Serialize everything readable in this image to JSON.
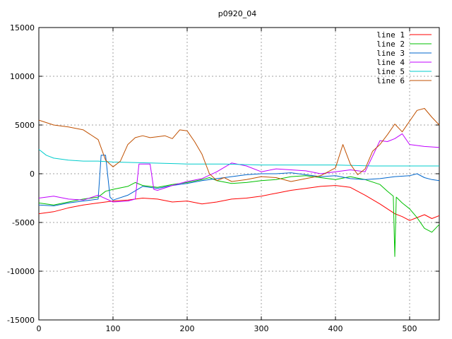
{
  "chart_data": {
    "type": "line",
    "title": "p0920_04",
    "xlabel": "",
    "ylabel": "",
    "xlim": [
      0,
      540
    ],
    "ylim": [
      -15000,
      15000
    ],
    "x_ticks": [
      0,
      100,
      200,
      300,
      400,
      500
    ],
    "y_ticks": [
      -15000,
      -10000,
      -5000,
      0,
      5000,
      10000,
      15000
    ],
    "grid": true,
    "legend_position": "top-right",
    "series": [
      {
        "name": "line 1",
        "color": "#ff0000",
        "points": [
          [
            0,
            -4100
          ],
          [
            20,
            -3900
          ],
          [
            40,
            -3500
          ],
          [
            60,
            -3200
          ],
          [
            80,
            -3000
          ],
          [
            100,
            -2800
          ],
          [
            120,
            -2700
          ],
          [
            140,
            -2500
          ],
          [
            160,
            -2600
          ],
          [
            180,
            -2900
          ],
          [
            200,
            -2800
          ],
          [
            220,
            -3100
          ],
          [
            240,
            -2900
          ],
          [
            260,
            -2600
          ],
          [
            280,
            -2500
          ],
          [
            300,
            -2300
          ],
          [
            320,
            -2000
          ],
          [
            340,
            -1700
          ],
          [
            360,
            -1500
          ],
          [
            380,
            -1300
          ],
          [
            400,
            -1200
          ],
          [
            420,
            -1400
          ],
          [
            440,
            -2200
          ],
          [
            460,
            -3100
          ],
          [
            470,
            -3600
          ],
          [
            480,
            -4100
          ],
          [
            490,
            -4400
          ],
          [
            500,
            -4800
          ],
          [
            510,
            -4500
          ],
          [
            520,
            -4200
          ],
          [
            530,
            -4600
          ],
          [
            540,
            -4300
          ]
        ]
      },
      {
        "name": "line 2",
        "color": "#00c000",
        "points": [
          [
            0,
            -3000
          ],
          [
            20,
            -3200
          ],
          [
            40,
            -2900
          ],
          [
            60,
            -2600
          ],
          [
            80,
            -2400
          ],
          [
            90,
            -1800
          ],
          [
            100,
            -1600
          ],
          [
            120,
            -1300
          ],
          [
            130,
            -900
          ],
          [
            140,
            -1200
          ],
          [
            160,
            -1400
          ],
          [
            180,
            -1100
          ],
          [
            200,
            -900
          ],
          [
            220,
            -600
          ],
          [
            230,
            -400
          ],
          [
            240,
            -700
          ],
          [
            260,
            -1000
          ],
          [
            280,
            -900
          ],
          [
            300,
            -700
          ],
          [
            320,
            -600
          ],
          [
            340,
            -300
          ],
          [
            360,
            -200
          ],
          [
            380,
            -400
          ],
          [
            400,
            -600
          ],
          [
            420,
            -300
          ],
          [
            440,
            -600
          ],
          [
            460,
            -1100
          ],
          [
            470,
            -1800
          ],
          [
            478,
            -2300
          ],
          [
            480,
            -8500
          ],
          [
            482,
            -2400
          ],
          [
            490,
            -3000
          ],
          [
            500,
            -3600
          ],
          [
            510,
            -4500
          ],
          [
            520,
            -5600
          ],
          [
            530,
            -6000
          ],
          [
            540,
            -5200
          ]
        ]
      },
      {
        "name": "line 3",
        "color": "#0066cc",
        "points": [
          [
            0,
            -3200
          ],
          [
            20,
            -3300
          ],
          [
            40,
            -3000
          ],
          [
            60,
            -2800
          ],
          [
            80,
            -2600
          ],
          [
            84,
            1900
          ],
          [
            90,
            1900
          ],
          [
            96,
            -2400
          ],
          [
            100,
            -2700
          ],
          [
            120,
            -2200
          ],
          [
            140,
            -1300
          ],
          [
            160,
            -1500
          ],
          [
            180,
            -1200
          ],
          [
            200,
            -1000
          ],
          [
            220,
            -700
          ],
          [
            240,
            -500
          ],
          [
            260,
            -300
          ],
          [
            280,
            -100
          ],
          [
            300,
            0
          ],
          [
            320,
            0
          ],
          [
            340,
            100
          ],
          [
            360,
            -100
          ],
          [
            380,
            -300
          ],
          [
            400,
            -200
          ],
          [
            420,
            -500
          ],
          [
            440,
            -600
          ],
          [
            460,
            -500
          ],
          [
            480,
            -300
          ],
          [
            500,
            -200
          ],
          [
            510,
            0
          ],
          [
            520,
            -400
          ],
          [
            530,
            -600
          ],
          [
            540,
            -700
          ]
        ]
      },
      {
        "name": "line 4",
        "color": "#c000ff",
        "points": [
          [
            0,
            -2500
          ],
          [
            20,
            -2300
          ],
          [
            40,
            -2600
          ],
          [
            60,
            -2700
          ],
          [
            80,
            -2200
          ],
          [
            100,
            -2900
          ],
          [
            120,
            -2800
          ],
          [
            130,
            -2600
          ],
          [
            135,
            1000
          ],
          [
            150,
            1000
          ],
          [
            155,
            -1600
          ],
          [
            160,
            -1700
          ],
          [
            180,
            -1200
          ],
          [
            200,
            -800
          ],
          [
            220,
            -500
          ],
          [
            240,
            200
          ],
          [
            260,
            1100
          ],
          [
            280,
            800
          ],
          [
            300,
            200
          ],
          [
            320,
            500
          ],
          [
            340,
            400
          ],
          [
            360,
            300
          ],
          [
            380,
            0
          ],
          [
            400,
            200
          ],
          [
            420,
            400
          ],
          [
            440,
            200
          ],
          [
            450,
            1800
          ],
          [
            460,
            3400
          ],
          [
            470,
            3300
          ],
          [
            480,
            3600
          ],
          [
            490,
            4100
          ],
          [
            500,
            3000
          ],
          [
            520,
            2800
          ],
          [
            540,
            2700
          ]
        ]
      },
      {
        "name": "line 5",
        "color": "#00cccc",
        "points": [
          [
            0,
            2500
          ],
          [
            10,
            1900
          ],
          [
            20,
            1600
          ],
          [
            40,
            1400
          ],
          [
            60,
            1300
          ],
          [
            80,
            1300
          ],
          [
            100,
            1200
          ],
          [
            150,
            1100
          ],
          [
            200,
            1000
          ],
          [
            250,
            1000
          ],
          [
            300,
            900
          ],
          [
            350,
            900
          ],
          [
            400,
            900
          ],
          [
            450,
            800
          ],
          [
            500,
            800
          ],
          [
            540,
            800
          ]
        ]
      },
      {
        "name": "line 6",
        "color": "#c05000",
        "points": [
          [
            0,
            5500
          ],
          [
            20,
            5000
          ],
          [
            40,
            4800
          ],
          [
            60,
            4500
          ],
          [
            80,
            3500
          ],
          [
            90,
            1400
          ],
          [
            100,
            700
          ],
          [
            110,
            1300
          ],
          [
            120,
            3000
          ],
          [
            130,
            3700
          ],
          [
            140,
            3900
          ],
          [
            150,
            3700
          ],
          [
            160,
            3800
          ],
          [
            170,
            3900
          ],
          [
            180,
            3600
          ],
          [
            190,
            4500
          ],
          [
            200,
            4400
          ],
          [
            210,
            3300
          ],
          [
            220,
            2000
          ],
          [
            230,
            0
          ],
          [
            240,
            -700
          ],
          [
            250,
            -400
          ],
          [
            260,
            -800
          ],
          [
            280,
            -600
          ],
          [
            300,
            -300
          ],
          [
            320,
            -400
          ],
          [
            340,
            -800
          ],
          [
            360,
            -500
          ],
          [
            380,
            -200
          ],
          [
            400,
            600
          ],
          [
            410,
            3000
          ],
          [
            420,
            1000
          ],
          [
            430,
            -100
          ],
          [
            440,
            500
          ],
          [
            450,
            2300
          ],
          [
            460,
            3000
          ],
          [
            470,
            4000
          ],
          [
            480,
            5100
          ],
          [
            490,
            4300
          ],
          [
            500,
            5400
          ],
          [
            510,
            6500
          ],
          [
            520,
            6700
          ],
          [
            530,
            5800
          ],
          [
            540,
            5000
          ]
        ]
      }
    ]
  }
}
